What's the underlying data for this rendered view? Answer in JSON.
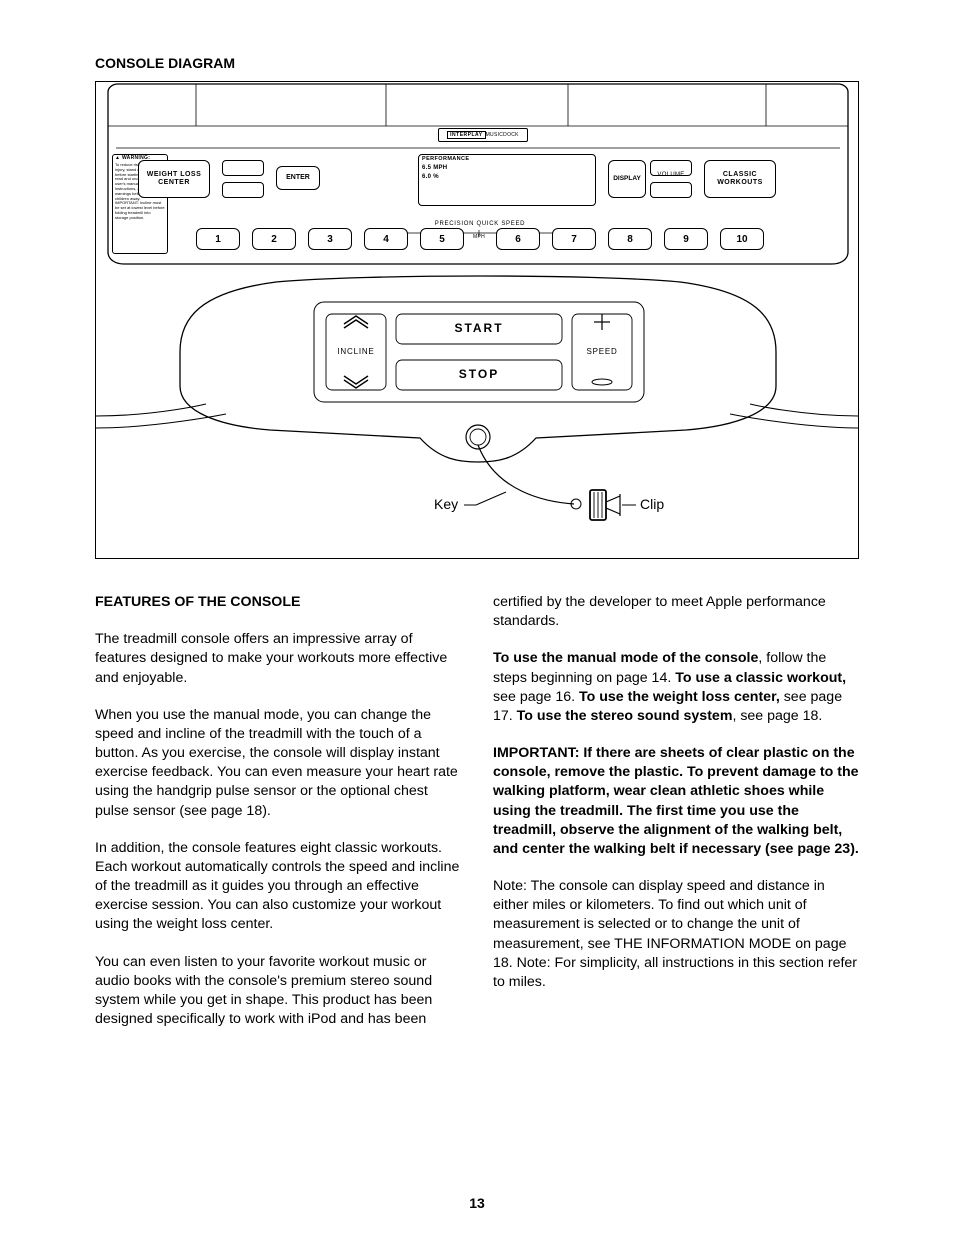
{
  "page_number": "13",
  "headings": {
    "console_diagram": "CONSOLE DIAGRAM",
    "features": "FEATURES OF THE CONSOLE"
  },
  "diagram": {
    "top_bar_label": "INTERPLAY",
    "top_bar_sub": " MUSICDOCK",
    "warning_header": "▲ WARNING:",
    "warning_body": "To reduce risk of serious injury, stand on foot rails before starting treadmill, read and understand the user's manual all instructions, and the warnings before use. Keep children away. IMPORTANT: Incline must be set at lowest level before folding treadmill into storage position.",
    "weight_loss": "WEIGHT LOSS\nCENTER",
    "enter": "ENTER",
    "performance": "PERFORMANCE",
    "perf_mph": "6.5 MPH",
    "perf_pct": "6.0 %",
    "display": "DISPLAY",
    "volume": "VOLUME",
    "classic": "CLASSIC\nWORKOUTS",
    "precision": "PRECISION QUICK SPEED",
    "mph": "MPH",
    "numbers": [
      "1",
      "2",
      "3",
      "4",
      "5",
      "6",
      "7",
      "8",
      "9",
      "10"
    ],
    "incline": "INCLINE",
    "speed": "SPEED",
    "start": "START",
    "stop": "STOP",
    "key": "Key",
    "clip": "Clip"
  },
  "left_col": {
    "p1": "The treadmill console offers an impressive array of features designed to make your workouts more effective and enjoyable.",
    "p2": "When you use the manual mode, you can change the speed and incline of the treadmill with the touch of a button. As you exercise, the console will display instant exercise feedback. You can even measure your heart rate using the handgrip pulse sensor or the optional chest pulse sensor (see page 18).",
    "p3": "In addition, the console features eight classic workouts. Each workout automatically controls the speed and incline of the treadmill as it guides you through an effective exercise session. You can also customize your workout using the weight loss center.",
    "p4": "You can even listen to your favorite workout music or audio books with the console's premium stereo sound system while you get in shape. This product has been designed specifically to work with iPod and has been"
  },
  "right_col": {
    "p1": "certified by the developer to meet Apple performance standards.",
    "p2a": "To use the manual mode of the console",
    "p2b": ", follow the steps beginning on page 14. ",
    "p2c": "To use a classic workout,",
    "p2d": " see page 16. ",
    "p2e": "To use the weight loss center,",
    "p2f": " see page 17. ",
    "p2g": "To use the stereo sound system",
    "p2h": ", see page 18.",
    "p3": "IMPORTANT: If there are sheets of clear plastic on the console, remove the plastic. To prevent damage to the walking platform, wear clean athletic shoes while using the treadmill. The first time you use the treadmill, observe the alignment of the walking belt, and center the walking belt if necessary (see page 23).",
    "p4": "Note: The console can display speed and distance in either miles or kilometers. To find out which unit of measurement is selected or to change the unit of measurement, see THE INFORMATION MODE on page 18. Note: For simplicity, all instructions in this section refer to miles."
  },
  "style": {
    "border_color": "#000000",
    "bg": "#ffffff",
    "text_color": "#000000",
    "body_font_size": 14.2,
    "heading_font_size": 14,
    "diagram_small_font": 7
  }
}
